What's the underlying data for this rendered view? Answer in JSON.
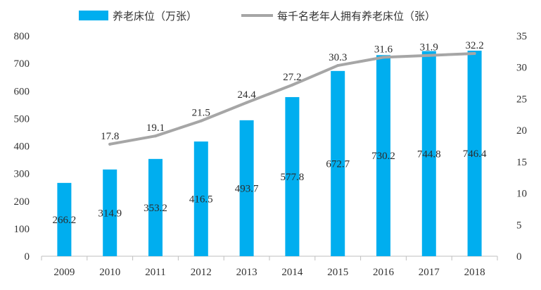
{
  "colors": {
    "bar": "#00aeef",
    "line": "#a6a6a6",
    "axis": "#bfbfbf",
    "text": "#333333"
  },
  "chart_data": {
    "type": "bar",
    "categories": [
      "2009",
      "2010",
      "2011",
      "2012",
      "2013",
      "2014",
      "2015",
      "2016",
      "2017",
      "2018"
    ],
    "series": [
      {
        "name": "养老床位（万张）",
        "type": "bar",
        "axis": "left",
        "values": [
          266.2,
          314.9,
          353.2,
          416.5,
          493.7,
          577.8,
          672.7,
          730.2,
          744.8,
          746.4
        ],
        "labels": [
          "266.2",
          "314.9",
          "353.2",
          "416.5",
          "493.7",
          "577.8",
          "672.7",
          "730.2",
          "744.8",
          "746.4"
        ]
      },
      {
        "name": "每千名老年人拥有养老床位（张）",
        "type": "line",
        "axis": "right",
        "x": [
          "2010",
          "2011",
          "2012",
          "2013",
          "2014",
          "2015",
          "2016",
          "2017",
          "2018"
        ],
        "values": [
          17.8,
          19.1,
          21.5,
          24.4,
          27.2,
          30.3,
          31.6,
          31.9,
          32.2
        ],
        "labels": [
          "17.8",
          "19.1",
          "21.5",
          "24.4",
          "27.2",
          "30.3",
          "31.6",
          "31.9",
          "32.2"
        ]
      }
    ],
    "y_left": {
      "ylim": [
        0,
        800
      ],
      "ticks": [
        "0",
        "100",
        "200",
        "300",
        "400",
        "500",
        "600",
        "700",
        "800"
      ]
    },
    "y_right": {
      "ylim": [
        0,
        35
      ],
      "ticks": [
        "0",
        "5",
        "10",
        "15",
        "20",
        "25",
        "30",
        "35"
      ]
    },
    "grid": false,
    "legend_position": "top"
  }
}
